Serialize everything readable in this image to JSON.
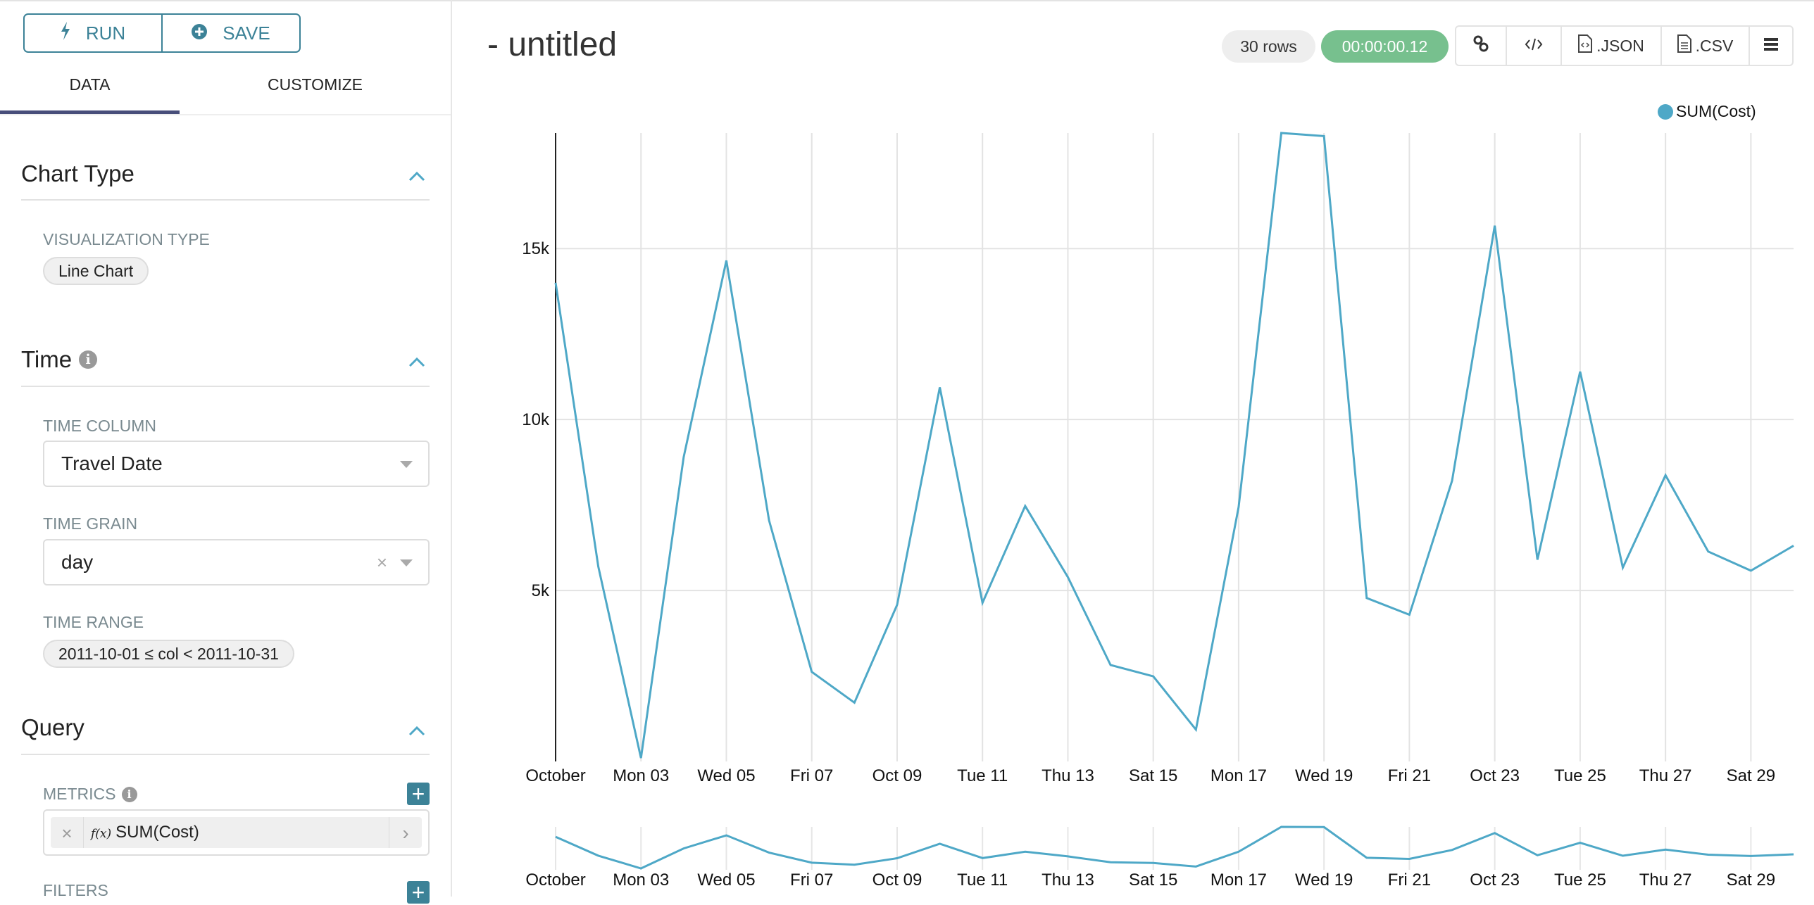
{
  "sidebar": {
    "run_label": "RUN",
    "save_label": "SAVE",
    "tabs": [
      {
        "label": "DATA",
        "active": true
      },
      {
        "label": "CUSTOMIZE",
        "active": false
      }
    ],
    "chart_type": {
      "title": "Chart Type",
      "viz_label": "VISUALIZATION TYPE",
      "viz_value": "Line Chart"
    },
    "time": {
      "title": "Time",
      "column_label": "TIME COLUMN",
      "column_value": "Travel Date",
      "grain_label": "TIME GRAIN",
      "grain_value": "day",
      "range_label": "TIME RANGE",
      "range_value": "2011-10-01 ≤ col < 2011-10-31"
    },
    "query": {
      "title": "Query",
      "metrics_label": "METRICS",
      "metric_fx": "f(x)",
      "metric_value": "SUM(Cost)",
      "filters_label": "FILTERS"
    }
  },
  "header": {
    "title": "- untitled",
    "rows_badge": "30 rows",
    "timer_badge": "00:00:00.12",
    "json_label": ".JSON",
    "csv_label": ".CSV"
  },
  "colors": {
    "accent": "#3c8297",
    "series": "#4ea8c7",
    "timer": "#77c08e"
  },
  "chart_data": {
    "type": "line",
    "legend": {
      "position": "top-right"
    },
    "grid": true,
    "series": [
      {
        "name": "SUM(Cost)",
        "values": [
          14000,
          5700,
          100,
          8900,
          14650,
          7050,
          2620,
          1720,
          4580,
          10940,
          4640,
          7470,
          5390,
          2820,
          2490,
          930,
          7440,
          18380,
          18290,
          4780,
          4290,
          8210,
          15670,
          5900,
          11400,
          5670,
          8370,
          6140,
          5580,
          6310
        ]
      }
    ],
    "x": [
      "2011-10-01",
      "2011-10-02",
      "2011-10-03",
      "2011-10-04",
      "2011-10-05",
      "2011-10-06",
      "2011-10-07",
      "2011-10-08",
      "2011-10-09",
      "2011-10-10",
      "2011-10-11",
      "2011-10-12",
      "2011-10-13",
      "2011-10-14",
      "2011-10-15",
      "2011-10-16",
      "2011-10-17",
      "2011-10-18",
      "2011-10-19",
      "2011-10-20",
      "2011-10-21",
      "2011-10-22",
      "2011-10-23",
      "2011-10-24",
      "2011-10-25",
      "2011-10-26",
      "2011-10-27",
      "2011-10-28",
      "2011-10-29",
      "2011-10-30"
    ],
    "x_tick_labels": [
      "October",
      "Mon 03",
      "Wed 05",
      "Fri 07",
      "Oct 09",
      "Tue 11",
      "Thu 13",
      "Sat 15",
      "Mon 17",
      "Wed 19",
      "Fri 21",
      "Oct 23",
      "Tue 25",
      "Thu 27",
      "Sat 29"
    ],
    "y_ticks": [
      5000,
      10000,
      15000
    ],
    "y_tick_labels": [
      "5k",
      "10k",
      "15k"
    ],
    "ylim": [
      0,
      18380
    ],
    "brush_overview": true
  }
}
